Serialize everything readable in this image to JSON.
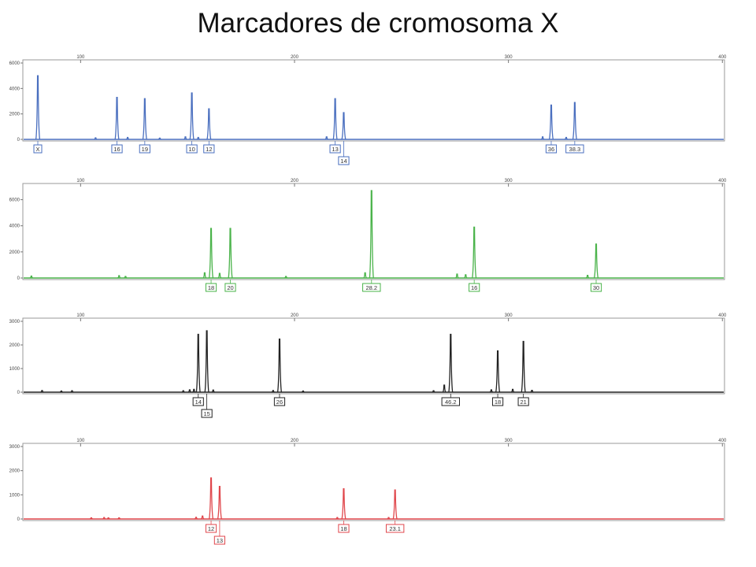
{
  "title": "Marcadores de cromosoma X",
  "colors": {
    "blue": "#4a6fbf",
    "green": "#4ab34a",
    "black": "#222222",
    "red": "#e0474c"
  },
  "chart_data": [
    {
      "type": "line",
      "name": "panel-blue",
      "color": "#4a6fbf",
      "xlim": [
        73,
        401
      ],
      "ylim": [
        0,
        6000
      ],
      "xticks": [
        100,
        200,
        300,
        400
      ],
      "yticks": [
        0,
        2000,
        4000,
        6000
      ],
      "grid": false,
      "peaks": [
        {
          "x": 80,
          "y": 5000
        },
        {
          "x": 117,
          "y": 3300
        },
        {
          "x": 130,
          "y": 3200
        },
        {
          "x": 152,
          "y": 3650
        },
        {
          "x": 160,
          "y": 2400
        },
        {
          "x": 219,
          "y": 3200
        },
        {
          "x": 223,
          "y": 2100
        },
        {
          "x": 320,
          "y": 2700
        },
        {
          "x": 331,
          "y": 2900
        },
        {
          "x": 107,
          "y": 120
        },
        {
          "x": 122,
          "y": 150
        },
        {
          "x": 137,
          "y": 100
        },
        {
          "x": 149,
          "y": 200
        },
        {
          "x": 155,
          "y": 150
        },
        {
          "x": 215,
          "y": 200
        },
        {
          "x": 316,
          "y": 200
        },
        {
          "x": 327,
          "y": 150
        }
      ],
      "labels": [
        {
          "text": "X",
          "x": 80,
          "row": 0
        },
        {
          "text": "16",
          "x": 117,
          "row": 0
        },
        {
          "text": "19",
          "x": 130,
          "row": 0
        },
        {
          "text": "10",
          "x": 152,
          "row": 0
        },
        {
          "text": "12",
          "x": 160,
          "row": 0
        },
        {
          "text": "13",
          "x": 219,
          "row": 0
        },
        {
          "text": "14",
          "x": 223,
          "row": 1
        },
        {
          "text": "36",
          "x": 320,
          "row": 0
        },
        {
          "text": "38.3",
          "x": 331,
          "row": 0
        }
      ]
    },
    {
      "type": "line",
      "name": "panel-green",
      "color": "#4ab34a",
      "xlim": [
        73,
        401
      ],
      "ylim": [
        0,
        7000
      ],
      "xticks": [
        100,
        200,
        300,
        400
      ],
      "yticks": [
        0,
        2000,
        4000,
        6000
      ],
      "grid": false,
      "peaks": [
        {
          "x": 161,
          "y": 3800
        },
        {
          "x": 170,
          "y": 3800
        },
        {
          "x": 236,
          "y": 6700
        },
        {
          "x": 284,
          "y": 3900
        },
        {
          "x": 341,
          "y": 2600
        },
        {
          "x": 77,
          "y": 150
        },
        {
          "x": 118,
          "y": 180
        },
        {
          "x": 121,
          "y": 120
        },
        {
          "x": 158,
          "y": 400
        },
        {
          "x": 165,
          "y": 350
        },
        {
          "x": 196,
          "y": 120
        },
        {
          "x": 233,
          "y": 400
        },
        {
          "x": 276,
          "y": 300
        },
        {
          "x": 280,
          "y": 250
        },
        {
          "x": 337,
          "y": 200
        }
      ],
      "labels": [
        {
          "text": "18",
          "x": 161,
          "row": 0
        },
        {
          "text": "20",
          "x": 170,
          "row": 0
        },
        {
          "text": "28.2",
          "x": 236,
          "row": 0
        },
        {
          "text": "16",
          "x": 284,
          "row": 0
        },
        {
          "text": "30",
          "x": 341,
          "row": 0
        }
      ]
    },
    {
      "type": "line",
      "name": "panel-black",
      "color": "#222222",
      "xlim": [
        73,
        401
      ],
      "ylim": [
        0,
        3000
      ],
      "xticks": [
        100,
        200,
        300,
        400
      ],
      "yticks": [
        0,
        1000,
        2000,
        3000
      ],
      "grid": false,
      "peaks": [
        {
          "x": 155,
          "y": 2450
        },
        {
          "x": 159,
          "y": 2600
        },
        {
          "x": 193,
          "y": 2250
        },
        {
          "x": 273,
          "y": 2450
        },
        {
          "x": 295,
          "y": 1750
        },
        {
          "x": 307,
          "y": 2150
        },
        {
          "x": 82,
          "y": 70
        },
        {
          "x": 91,
          "y": 50
        },
        {
          "x": 96,
          "y": 60
        },
        {
          "x": 148,
          "y": 60
        },
        {
          "x": 151,
          "y": 100
        },
        {
          "x": 153,
          "y": 120
        },
        {
          "x": 162,
          "y": 90
        },
        {
          "x": 190,
          "y": 70
        },
        {
          "x": 204,
          "y": 50
        },
        {
          "x": 265,
          "y": 60
        },
        {
          "x": 270,
          "y": 300
        },
        {
          "x": 292,
          "y": 100
        },
        {
          "x": 302,
          "y": 120
        },
        {
          "x": 311,
          "y": 80
        }
      ],
      "labels": [
        {
          "text": "14",
          "x": 155,
          "row": 0
        },
        {
          "text": "15",
          "x": 159,
          "row": 1
        },
        {
          "text": "26",
          "x": 193,
          "row": 0
        },
        {
          "text": "46.2",
          "x": 273,
          "row": 0
        },
        {
          "text": "18",
          "x": 295,
          "row": 0
        },
        {
          "text": "21",
          "x": 307,
          "row": 0
        }
      ]
    },
    {
      "type": "line",
      "name": "panel-red",
      "color": "#e0474c",
      "xlim": [
        73,
        401
      ],
      "ylim": [
        0,
        3000
      ],
      "xticks": [
        100,
        200,
        300,
        400
      ],
      "yticks": [
        0,
        1000,
        2000,
        3000
      ],
      "grid": false,
      "peaks": [
        {
          "x": 161,
          "y": 1700
        },
        {
          "x": 165,
          "y": 1350
        },
        {
          "x": 223,
          "y": 1250
        },
        {
          "x": 247,
          "y": 1200
        },
        {
          "x": 105,
          "y": 50
        },
        {
          "x": 111,
          "y": 60
        },
        {
          "x": 113,
          "y": 50
        },
        {
          "x": 118,
          "y": 50
        },
        {
          "x": 154,
          "y": 70
        },
        {
          "x": 157,
          "y": 120
        },
        {
          "x": 220,
          "y": 60
        },
        {
          "x": 244,
          "y": 60
        }
      ],
      "labels": [
        {
          "text": "12",
          "x": 161,
          "row": 0
        },
        {
          "text": "13",
          "x": 165,
          "row": 1
        },
        {
          "text": "18",
          "x": 223,
          "row": 0
        },
        {
          "text": "23.1",
          "x": 247,
          "row": 0
        }
      ]
    }
  ]
}
